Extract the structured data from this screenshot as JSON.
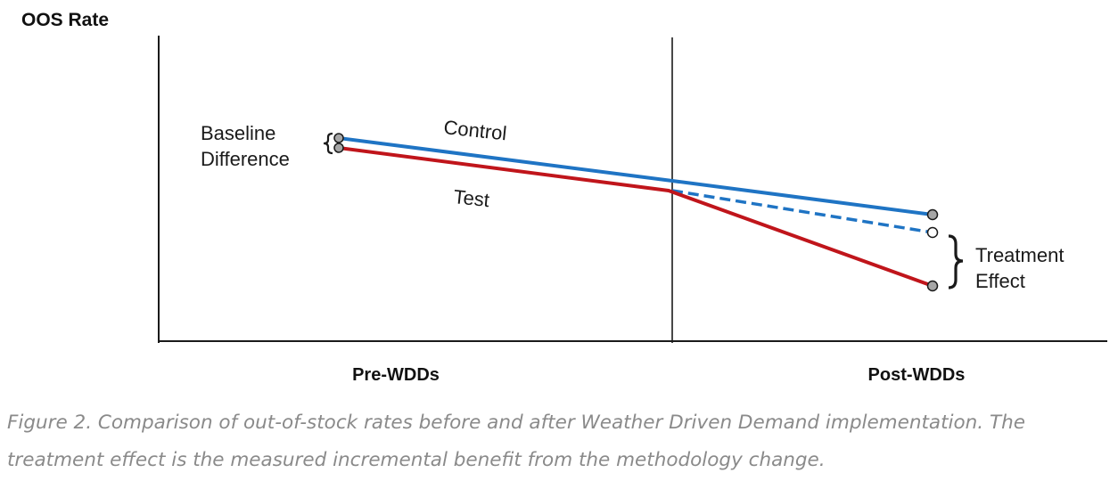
{
  "figure": {
    "y_axis_label": "OOS Rate",
    "periods": [
      "Pre-WDDs",
      "Post-WDDs"
    ],
    "series_labels": {
      "control": "Control",
      "test": "Test"
    },
    "annotations": {
      "baseline_line1": "Baseline",
      "baseline_line2": "Difference",
      "treatment_line1": "Treatment",
      "treatment_line2": "Effect"
    },
    "colors": {
      "control": "#1f74c4",
      "test": "#c0151b",
      "axis": "#1a1a1a",
      "marker_fill_filled": "#a6a6a6",
      "marker_fill_open": "#ffffff",
      "caption": "#8a8a8a"
    },
    "caption": "Figure 2. Comparison of out-of-stock rates before and after Weather Driven Demand implementation. The treatment effect is the measured incremental benefit from the methodology change."
  }
}
